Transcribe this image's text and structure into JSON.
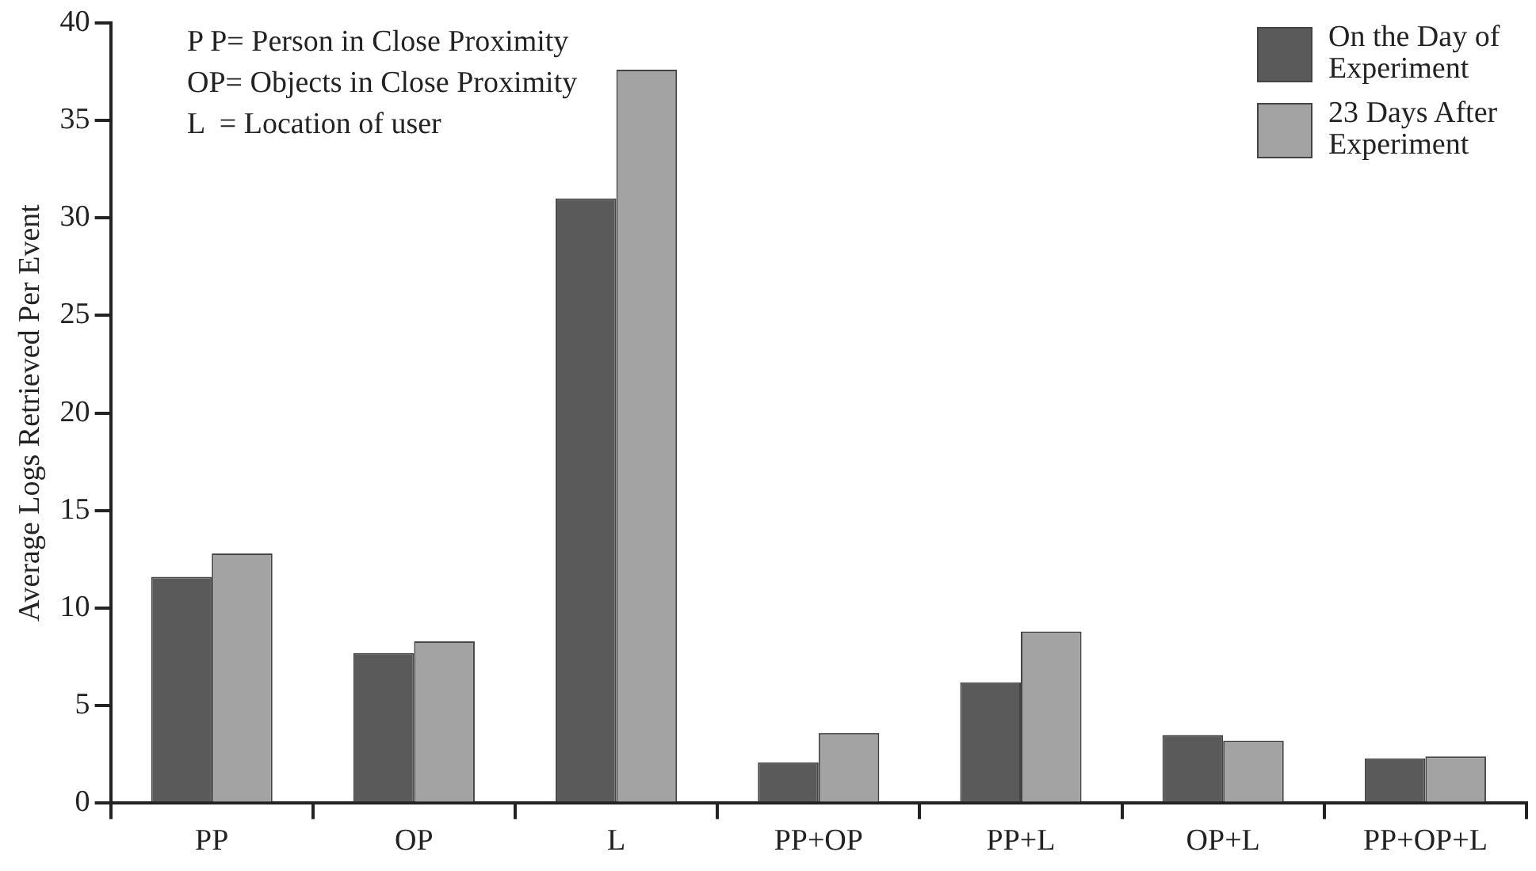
{
  "chart_data": {
    "type": "bar",
    "ylabel": "Average Logs Retrieved Per Event",
    "categories": [
      "PP",
      "OP",
      "L",
      "PP+OP",
      "PP+L",
      "OP+L",
      "PP+OP+L"
    ],
    "series": [
      {
        "name": "On the Day of Experiment",
        "color": "#5a5a5a",
        "values": [
          11.6,
          7.7,
          31.0,
          2.1,
          6.2,
          3.5,
          2.3
        ]
      },
      {
        "name": "23 Days After Experiment",
        "color": "#a3a3a3",
        "values": [
          12.8,
          8.3,
          37.6,
          3.6,
          8.8,
          3.2,
          2.4
        ]
      }
    ],
    "ylim": [
      0,
      40
    ],
    "yticks": [
      0,
      5,
      10,
      15,
      20,
      25,
      30,
      35,
      40
    ],
    "grid": false,
    "legend": "top right",
    "annotations": [
      "P P= Person in Close Proximity",
      "OP= Objects in Close Proximity",
      "L  = Location of user"
    ]
  }
}
